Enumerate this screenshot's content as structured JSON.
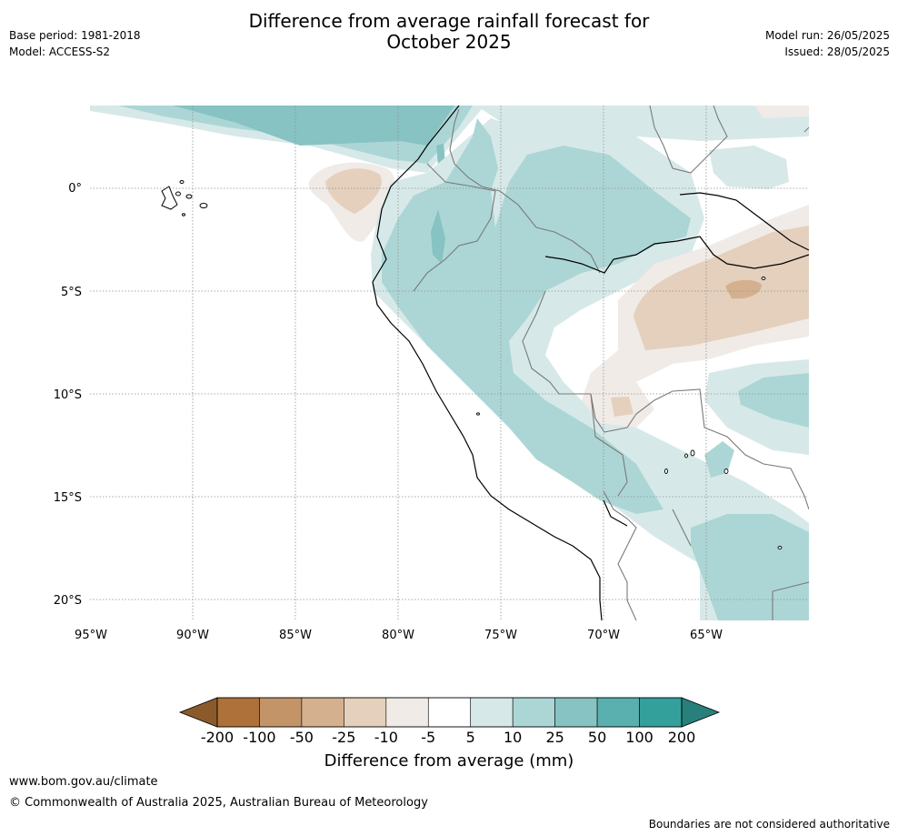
{
  "title_line1": "Difference from average rainfall forecast for",
  "title_line2": "October 2025",
  "base_period": "Base period: 1981-2018",
  "model": "Model: ACCESS-S2",
  "model_run": "Model run: 26/05/2025",
  "issued": "Issued: 28/05/2025",
  "lat_ticks": [
    "0°",
    "5°S",
    "10°S",
    "15°S",
    "20°S"
  ],
  "lon_ticks": [
    "95°W",
    "90°W",
    "85°W",
    "80°W",
    "75°W",
    "70°W",
    "65°W"
  ],
  "colorbar": {
    "label": "Difference from average (mm)",
    "ticks": [
      "-200",
      "-100",
      "-50",
      "-25",
      "-10",
      "-5",
      "5",
      "10",
      "25",
      "50",
      "100",
      "200"
    ],
    "colors": [
      "#8b5a2b",
      "#ae713a",
      "#c39468",
      "#d5b08f",
      "#e4d0bd",
      "#f0ebe6",
      "#ffffff",
      "#d6e9e8",
      "#acd6d5",
      "#86c3c2",
      "#5ab0af",
      "#34a09b",
      "#28807c"
    ]
  },
  "footer_url": "www.bom.gov.au/climate",
  "footer_copyright": "© Commonwealth of Australia 2025, Australian Bureau of Meteorology",
  "footer_note": "Boundaries are not considered authoritative"
}
